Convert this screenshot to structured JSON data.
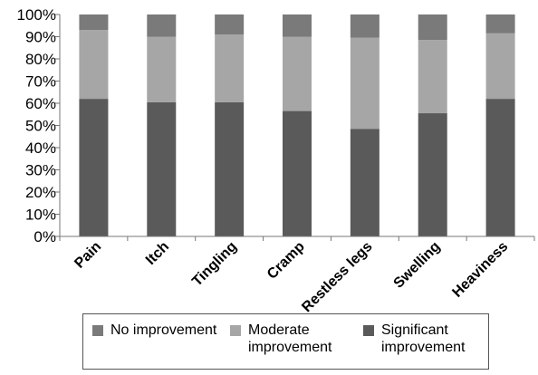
{
  "chart_data": {
    "type": "bar",
    "stacked": true,
    "categories": [
      "Pain",
      "Itch",
      "Tingling",
      "Cramp",
      "Restless legs",
      "Swelling",
      "Heaviness"
    ],
    "series": [
      {
        "name": "Significant improvement",
        "color": "#5a5a5a",
        "values": [
          62,
          60.5,
          60.5,
          56.5,
          48.5,
          55.5,
          62
        ]
      },
      {
        "name": "Moderate improvement",
        "color": "#a6a6a6",
        "values": [
          31,
          29.5,
          30.5,
          33.5,
          41,
          33,
          29.5
        ]
      },
      {
        "name": "No improvement",
        "color": "#7a7a7a",
        "values": [
          7,
          10,
          9,
          10,
          10.5,
          11.5,
          8.5
        ]
      }
    ],
    "y_ticks": [
      "0%",
      "10%",
      "20%",
      "30%",
      "40%",
      "50%",
      "60%",
      "70%",
      "80%",
      "90%",
      "100%"
    ],
    "ylim": [
      0,
      100
    ],
    "grid": false,
    "legend_position": "bottom"
  },
  "legend": {
    "items": [
      {
        "label": "No improvement",
        "color": "#7a7a7a"
      },
      {
        "label": "Moderate improvement",
        "color": "#a6a6a6"
      },
      {
        "label": "Significant improvement",
        "color": "#5a5a5a"
      }
    ]
  }
}
